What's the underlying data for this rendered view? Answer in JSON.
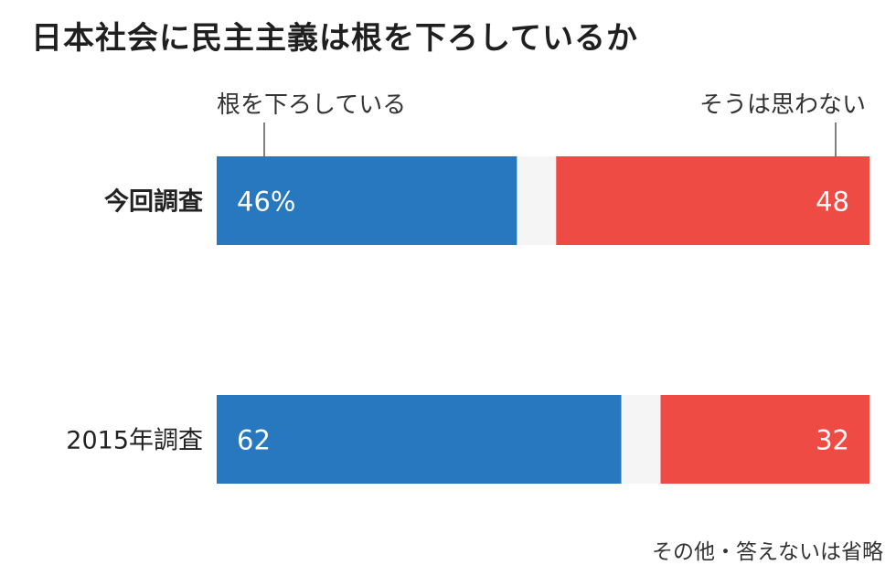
{
  "title": "日本社会に民主主義は根を下ろしているか",
  "footnote": "その他・答えないは省略",
  "chart_data": {
    "type": "bar",
    "orientation": "horizontal",
    "stacked": true,
    "categories": [
      "今回調査",
      "2015年調査"
    ],
    "series": [
      {
        "name": "根を下ろしている",
        "values": [
          46,
          62
        ],
        "labels": [
          "46%",
          "62"
        ],
        "color": "#2878c0"
      },
      {
        "name": "その他・答えない",
        "values": [
          6,
          6
        ],
        "color": "#f5f5f5"
      },
      {
        "name": "そうは思わない",
        "values": [
          48,
          32
        ],
        "labels": [
          "48",
          "32"
        ],
        "color": "#ef4b45"
      }
    ],
    "xlim": [
      0,
      100
    ]
  }
}
